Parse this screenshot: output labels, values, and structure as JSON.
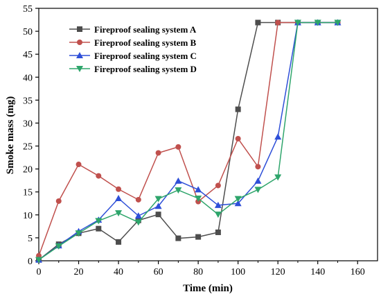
{
  "chart_data": {
    "type": "line",
    "title": "",
    "xlabel": "Time (min)",
    "ylabel": "Smoke mass (mg)",
    "xlim": [
      0,
      170
    ],
    "ylim": [
      0,
      55
    ],
    "xticks": [
      0,
      20,
      40,
      60,
      80,
      100,
      120,
      140,
      160
    ],
    "yticks": [
      0,
      5,
      10,
      15,
      20,
      25,
      30,
      35,
      40,
      45,
      50,
      55
    ],
    "grid": false,
    "legend_position": "top-left",
    "x": [
      0,
      10,
      20,
      30,
      40,
      50,
      60,
      70,
      80,
      90,
      100,
      110,
      120,
      130,
      140,
      150
    ],
    "series": [
      {
        "name": "Fireproof sealing system A",
        "color": "#4d4d4d",
        "marker": "square",
        "values": [
          0.2,
          3.6,
          6.0,
          7.0,
          4.1,
          8.8,
          10.1,
          4.9,
          5.2,
          6.2,
          33.0,
          51.9,
          51.9,
          51.9,
          51.9,
          51.9
        ]
      },
      {
        "name": "Fireproof sealing system B",
        "color": "#c0504d",
        "marker": "circle",
        "values": [
          1.1,
          13.0,
          21.0,
          18.5,
          15.6,
          13.3,
          23.5,
          24.8,
          12.9,
          16.4,
          26.6,
          20.5,
          51.9,
          51.9,
          51.9,
          51.9
        ]
      },
      {
        "name": "Fireproof sealing system C",
        "color": "#2e4fd8",
        "marker": "triangle-up",
        "values": [
          0.2,
          3.3,
          6.4,
          8.9,
          13.6,
          9.8,
          11.9,
          17.4,
          15.5,
          12.1,
          12.5,
          17.4,
          27.0,
          51.9,
          51.9,
          51.9
        ]
      },
      {
        "name": "Fireproof sealing system D",
        "color": "#2ea56b",
        "marker": "triangle-down",
        "values": [
          0.2,
          3.2,
          6.0,
          8.7,
          10.4,
          8.4,
          13.5,
          15.4,
          13.6,
          10.1,
          13.5,
          15.5,
          18.2,
          51.9,
          51.9,
          51.9
        ]
      }
    ]
  }
}
